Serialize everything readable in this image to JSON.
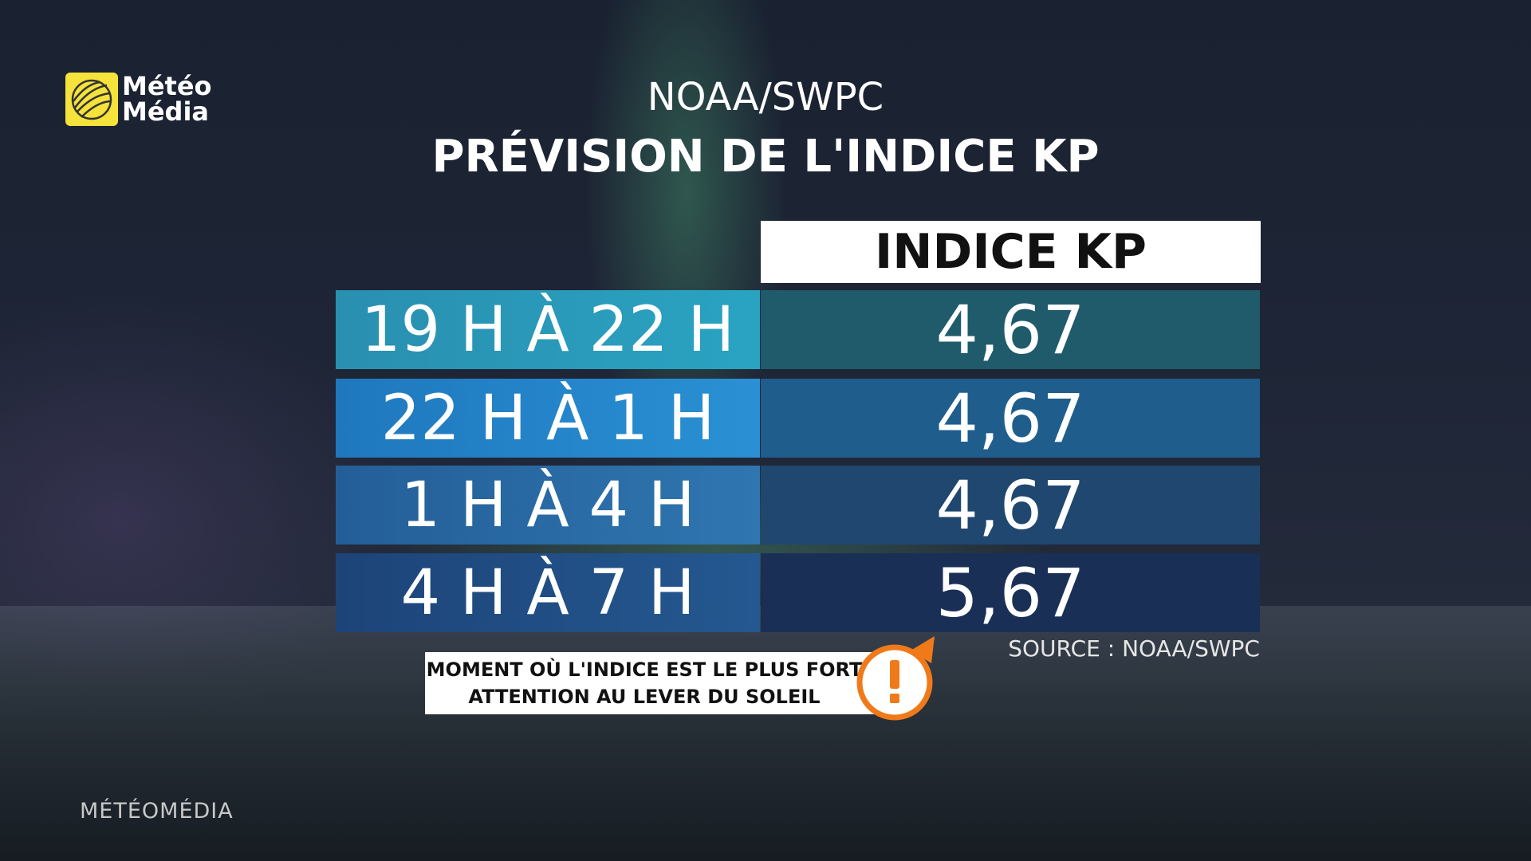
{
  "logo": {
    "line1": "Météo",
    "line2": "Média"
  },
  "header": {
    "subtitle": "NOAA/SWPC",
    "title": "PRÉVISION DE L'INDICE KP"
  },
  "table": {
    "column_header": "INDICE KP",
    "rows": [
      [
        "19 H À 22 H",
        "4,67"
      ],
      [
        "22 H À 1 H",
        "4,67"
      ],
      [
        "1 H À 4 H",
        "4,67"
      ],
      [
        "4 H À 7 H",
        "5,67"
      ]
    ]
  },
  "source_note": "SOURCE : NOAA/SWPC",
  "callout": {
    "line1": "MOMENT OÙ L'INDICE EST LE PLUS FORT",
    "line2": "ATTENTION AU LEVER DU SOLEIL"
  },
  "footer": "MÉTÉOMÉDIA"
}
